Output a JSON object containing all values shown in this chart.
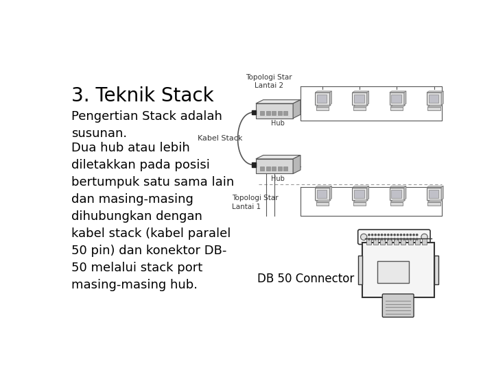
{
  "bg_color": "#ffffff",
  "title": "3. Teknik Stack",
  "title_fontsize": 20,
  "body_text_1": "Pengertian Stack adalah\nsusunan.",
  "body_text_2": "Dua hub atau lebih\ndiletakkan pada posisi\nbertumpuk satu sama lain\ndan masing-masing\ndihubungkan dengan\nkabel stack (kabel paralel\n50 pin) dan konektor DB-\n50 melalui stack port\nmasing-masing hub.",
  "body_fontsize": 13,
  "label_topologi2": "Topologi Star\nLantai 2",
  "label_topologi1": "Topologi Star\nLantai 1",
  "label_kabel": "Kabel Stack",
  "label_hub": "Hub",
  "label_db50": "DB 50 Connector",
  "text_color": "#000000",
  "line_color": "#555555",
  "hub_face": "#d8d8d8",
  "hub_edge": "#555555",
  "pc_body": "#e0e0e0",
  "pc_screen": "#c0c0c8",
  "conn_face": "#f5f5f5",
  "conn_edge": "#333333"
}
